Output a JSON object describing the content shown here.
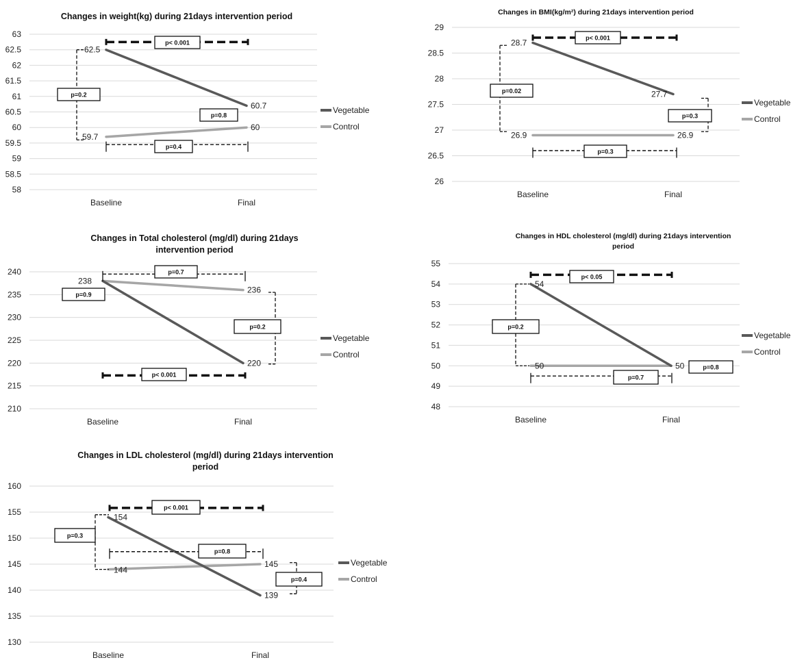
{
  "chart_data": [
    {
      "type": "line",
      "title_lines": [
        "Changes in weight(kg) during 21days intervention period"
      ],
      "categories": [
        "Baseline",
        "Final"
      ],
      "ylim": [
        58,
        63
      ],
      "yticks": [
        "58",
        "58.5",
        "59",
        "59.5",
        "60",
        "60.5",
        "61",
        "61.5",
        "62",
        "62.5",
        "63"
      ],
      "grid": true,
      "legend_position": "right",
      "series": [
        {
          "name": "Vegetable",
          "values": [
            62.5,
            60.7
          ],
          "labels": [
            "62.5",
            "60.7"
          ],
          "color": "#595959"
        },
        {
          "name": "Control",
          "values": [
            59.7,
            60
          ],
          "labels": [
            "59.7",
            "60"
          ],
          "color": "#a6a6a6"
        }
      ],
      "annotations": [
        {
          "text": "p< 0.001",
          "kind": "horizontal",
          "y": 62.75,
          "bold": true
        },
        {
          "text": "p=0.2",
          "kind": "vertical",
          "side": "left",
          "y1": 62.5,
          "y2": 59.6
        },
        {
          "text": "p=0.8",
          "kind": "box",
          "y": 60.35
        },
        {
          "text": "p=0.4",
          "kind": "horizontal",
          "y": 59.45,
          "bold": false
        }
      ]
    },
    {
      "type": "line",
      "title_lines": [
        "Changes in BMI(kg/m²) during 21days intervention period"
      ],
      "categories": [
        "Baseline",
        "Final"
      ],
      "ylim": [
        26,
        29
      ],
      "yticks": [
        "26",
        "26.5",
        "27",
        "27.5",
        "28",
        "28.5",
        "29"
      ],
      "grid": true,
      "legend_position": "right",
      "series": [
        {
          "name": "Vegetable",
          "values": [
            28.7,
            27.7
          ],
          "labels": [
            "28.7",
            "27.7"
          ],
          "color": "#595959"
        },
        {
          "name": "Control",
          "values": [
            26.9,
            26.9
          ],
          "labels": [
            "26.9",
            "26.9"
          ],
          "color": "#a6a6a6"
        }
      ],
      "annotations": [
        {
          "text": "p< 0.001",
          "kind": "horizontal",
          "y": 28.8,
          "bold": true
        },
        {
          "text": "p=0.02",
          "kind": "vertical",
          "side": "left",
          "y1": 28.65,
          "y2": 26.97
        },
        {
          "text": "p=0.3",
          "kind": "vertical",
          "side": "right",
          "y1": 27.62,
          "y2": 26.97
        },
        {
          "text": "p=0.3",
          "kind": "horizontal",
          "y": 26.6,
          "bold": false
        }
      ]
    },
    {
      "type": "line",
      "title_lines": [
        "Changes in Total cholesterol (mg/dl) during 21days",
        "intervention period"
      ],
      "categories": [
        "Baseline",
        "Final"
      ],
      "ylim": [
        210,
        240
      ],
      "yticks": [
        "210",
        "215",
        "220",
        "225",
        "230",
        "235",
        "240"
      ],
      "grid": true,
      "legend_position": "right",
      "series": [
        {
          "name": "Vegetable",
          "values": [
            238,
            220
          ],
          "labels": [
            "238",
            "220"
          ],
          "color": "#595959"
        },
        {
          "name": "Control",
          "values": [
            238,
            236
          ],
          "labels": [
            "",
            "236"
          ],
          "color": "#a6a6a6"
        }
      ],
      "annotations": [
        {
          "text": "p=0.7",
          "kind": "horizontal",
          "y": 239.5,
          "bold": false
        },
        {
          "text": "p=0.9",
          "kind": "box",
          "y": 235
        },
        {
          "text": "p=0.2",
          "kind": "vertical",
          "side": "right",
          "y1": 235.5,
          "y2": 219.8
        },
        {
          "text": "p< 0.001",
          "kind": "horizontal",
          "y": 217.3,
          "bold": true
        }
      ]
    },
    {
      "type": "line",
      "title_lines": [
        "Changes in HDL cholesterol (mg/dl) during 21days intervention",
        "period"
      ],
      "categories": [
        "Baseline",
        "Final"
      ],
      "ylim": [
        48,
        55
      ],
      "yticks": [
        "48",
        "49",
        "50",
        "51",
        "52",
        "53",
        "54",
        "55"
      ],
      "grid": true,
      "legend_position": "right",
      "series": [
        {
          "name": "Vegetable",
          "values": [
            54,
            50
          ],
          "labels": [
            "54",
            "50"
          ],
          "color": "#595959"
        },
        {
          "name": "Control",
          "values": [
            50,
            50
          ],
          "labels": [
            "50",
            ""
          ],
          "color": "#a6a6a6"
        }
      ],
      "annotations": [
        {
          "text": "p< 0.05",
          "kind": "horizontal",
          "y": 54.45,
          "bold": true
        },
        {
          "text": "p=0.2",
          "kind": "vertical",
          "side": "left",
          "y1": 54,
          "y2": 50
        },
        {
          "text": "p=0.7",
          "kind": "horizontal",
          "y": 49.5,
          "bold": false
        },
        {
          "text": "p=0.8",
          "kind": "box",
          "y": 50
        }
      ]
    },
    {
      "type": "line",
      "title_lines": [
        "Changes in LDL cholesterol (mg/dl) during 21days intervention",
        "period"
      ],
      "categories": [
        "Baseline",
        "Final"
      ],
      "ylim": [
        130,
        160
      ],
      "yticks": [
        "130",
        "135",
        "140",
        "145",
        "150",
        "155",
        "160"
      ],
      "grid": true,
      "legend_position": "right",
      "series": [
        {
          "name": "Vegetable",
          "values": [
            154,
            139
          ],
          "labels": [
            "154",
            "139"
          ],
          "color": "#595959"
        },
        {
          "name": "Control",
          "values": [
            144,
            145
          ],
          "labels": [
            "144",
            "145"
          ],
          "color": "#a6a6a6"
        }
      ],
      "annotations": [
        {
          "text": "p< 0.001",
          "kind": "horizontal",
          "y": 155.8,
          "bold": true
        },
        {
          "text": "p=0.3",
          "kind": "vertical",
          "side": "left",
          "y1": 154.5,
          "y2": 144
        },
        {
          "text": "p=0.8",
          "kind": "horizontal",
          "y": 147.4,
          "bold": false
        },
        {
          "text": "p=0.4",
          "kind": "vertical",
          "side": "right",
          "y1": 145.3,
          "y2": 139.3
        }
      ]
    }
  ]
}
